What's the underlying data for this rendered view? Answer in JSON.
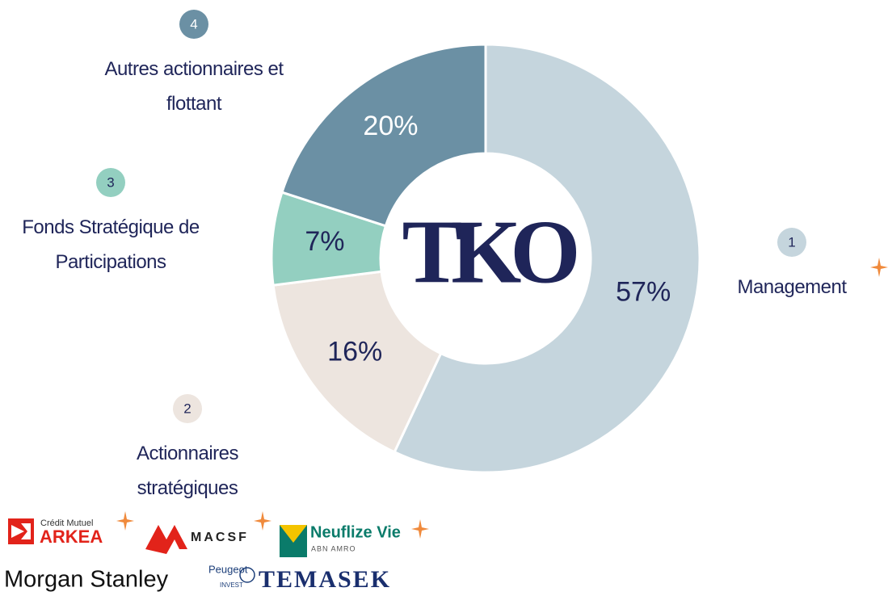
{
  "chart_data": {
    "type": "donut",
    "categories": [
      "Management",
      "Actionnaires stratégiques",
      "Fonds Stratégique de Participations",
      "Autres actionnaires et flottant"
    ],
    "badges": [
      "1",
      "2",
      "3",
      "4"
    ],
    "values": [
      57,
      16,
      7,
      20
    ],
    "value_labels": [
      "57%",
      "16%",
      "7%",
      "20%"
    ],
    "colors": [
      "#c5d5dd",
      "#ede5df",
      "#93cfc0",
      "#6b90a4"
    ],
    "center_logo": "TKO"
  },
  "logos": {
    "arkea_top": "Crédit Mutuel",
    "arkea": "ARKEA",
    "macsf": "MACSF",
    "neuflize": "Neuflize Vie",
    "abn": "ABN AMRO",
    "morgan": "Morgan Stanley",
    "peugeot": "Peugeot",
    "invest": "INVEST",
    "temasek": "TEMASEK"
  }
}
